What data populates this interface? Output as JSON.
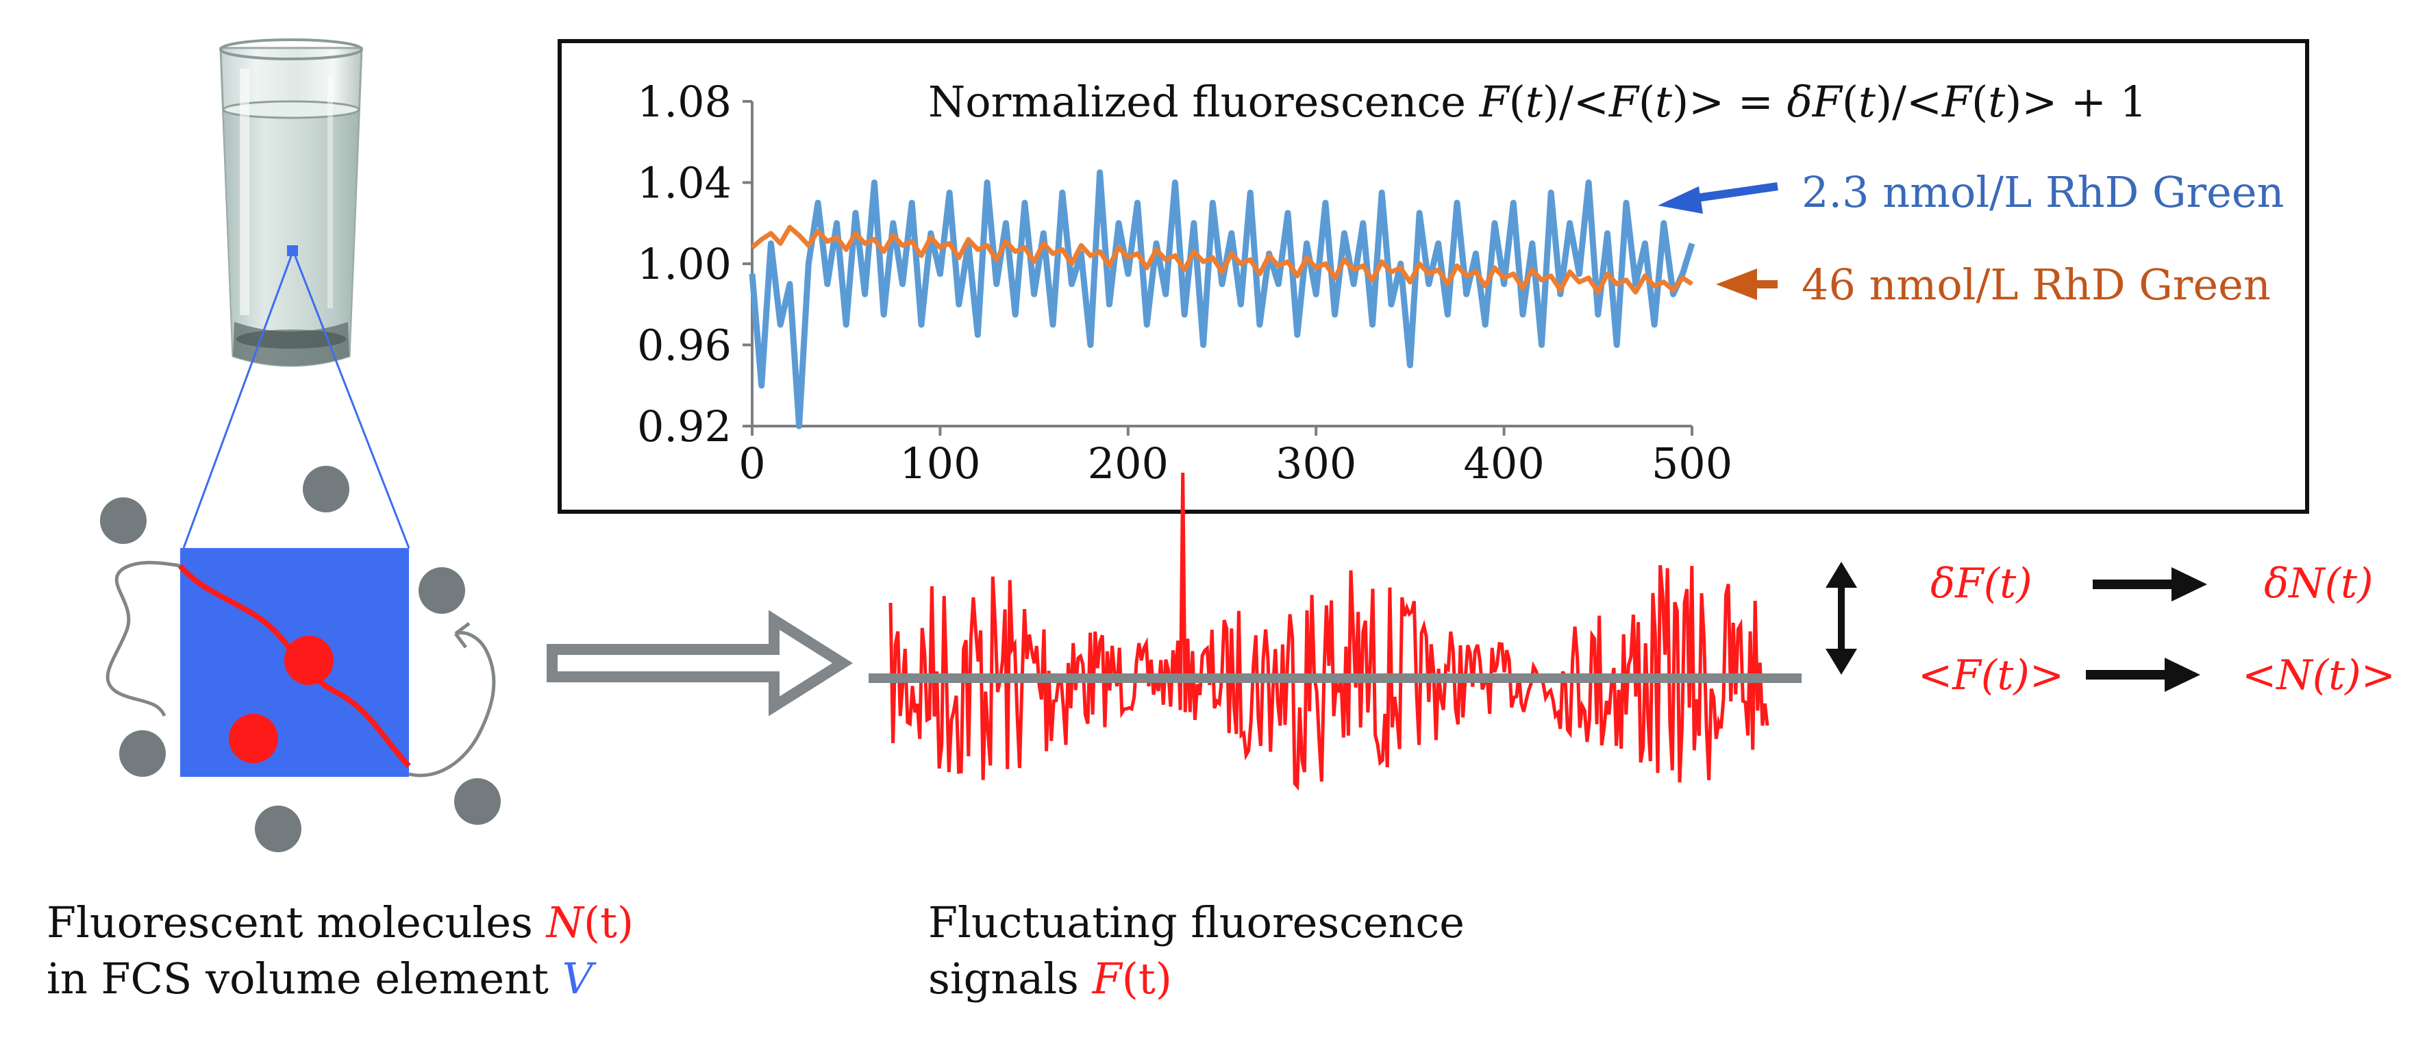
{
  "chart_data": {
    "type": "line",
    "title": "Normalized fluorescence",
    "title_formula": [
      "F(t)/<F(t)> = δF(t)/<F(t)> + 1"
    ],
    "xlabel": "",
    "ylabel": "",
    "xlim": [
      0,
      500
    ],
    "ylim": [
      0.92,
      1.08
    ],
    "x_ticks": [
      0,
      100,
      200,
      300,
      400,
      500
    ],
    "y_ticks": [
      0.92,
      0.96,
      1.0,
      1.04,
      1.08
    ],
    "x_tick_labels": [
      "0",
      "100",
      "200",
      "300",
      "400",
      "500"
    ],
    "y_tick_labels": [
      "0.92",
      "0.96",
      "1.00",
      "1.04",
      "1.08"
    ],
    "series": [
      {
        "name": "2.3 nmol/L RhD Green",
        "color": "#5b9bd5",
        "x": [
          0,
          5,
          10,
          15,
          20,
          25,
          30,
          35,
          40,
          45,
          50,
          55,
          60,
          65,
          70,
          75,
          80,
          85,
          90,
          95,
          100,
          105,
          110,
          115,
          120,
          125,
          130,
          135,
          140,
          145,
          150,
          155,
          160,
          165,
          170,
          175,
          180,
          185,
          190,
          195,
          200,
          205,
          210,
          215,
          220,
          225,
          230,
          235,
          240,
          245,
          250,
          255,
          260,
          265,
          270,
          275,
          280,
          285,
          290,
          295,
          300,
          305,
          310,
          315,
          320,
          325,
          330,
          335,
          340,
          345,
          350,
          355,
          360,
          365,
          370,
          375,
          380,
          385,
          390,
          395,
          400,
          405,
          410,
          415,
          420,
          425,
          430,
          435,
          440,
          445,
          450,
          455,
          460,
          465,
          470,
          475,
          480,
          485,
          490,
          495,
          500
        ],
        "values": [
          0.995,
          0.94,
          1.01,
          0.97,
          0.99,
          0.92,
          1.0,
          1.03,
          0.99,
          1.02,
          0.97,
          1.025,
          0.985,
          1.04,
          0.975,
          1.02,
          0.99,
          1.03,
          0.97,
          1.015,
          0.995,
          1.035,
          0.98,
          1.01,
          0.965,
          1.04,
          0.99,
          1.02,
          0.975,
          1.03,
          0.985,
          1.015,
          0.97,
          1.035,
          0.99,
          1.005,
          0.96,
          1.045,
          0.98,
          1.02,
          0.995,
          1.03,
          0.97,
          1.01,
          0.985,
          1.04,
          0.975,
          1.02,
          0.96,
          1.03,
          0.99,
          1.015,
          0.98,
          1.035,
          0.97,
          1.005,
          0.99,
          1.025,
          0.965,
          1.01,
          0.985,
          1.03,
          0.975,
          1.015,
          0.99,
          1.02,
          0.97,
          1.035,
          0.98,
          1.0,
          0.95,
          1.025,
          0.99,
          1.01,
          0.975,
          1.03,
          0.985,
          1.005,
          0.97,
          1.02,
          0.99,
          1.03,
          0.975,
          1.01,
          0.96,
          1.035,
          0.985,
          1.02,
          0.995,
          1.04,
          0.975,
          1.015,
          0.96,
          1.03,
          0.99,
          1.01,
          0.97,
          1.02,
          0.985,
          0.995,
          1.01
        ]
      },
      {
        "name": "46 nmol/L RhD Green",
        "color": "#ed7d31",
        "x": [
          0,
          5,
          10,
          15,
          20,
          25,
          30,
          35,
          40,
          45,
          50,
          55,
          60,
          65,
          70,
          75,
          80,
          85,
          90,
          95,
          100,
          105,
          110,
          115,
          120,
          125,
          130,
          135,
          140,
          145,
          150,
          155,
          160,
          165,
          170,
          175,
          180,
          185,
          190,
          195,
          200,
          205,
          210,
          215,
          220,
          225,
          230,
          235,
          240,
          245,
          250,
          255,
          260,
          265,
          270,
          275,
          280,
          285,
          290,
          295,
          300,
          305,
          310,
          315,
          320,
          325,
          330,
          335,
          340,
          345,
          350,
          355,
          360,
          365,
          370,
          375,
          380,
          385,
          390,
          395,
          400,
          405,
          410,
          415,
          420,
          425,
          430,
          435,
          440,
          445,
          450,
          455,
          460,
          465,
          470,
          475,
          480,
          485,
          490,
          495,
          500
        ],
        "values": [
          1.008,
          1.012,
          1.015,
          1.01,
          1.018,
          1.014,
          1.009,
          1.016,
          1.011,
          1.013,
          1.007,
          1.015,
          1.01,
          1.012,
          1.006,
          1.014,
          1.009,
          1.011,
          1.004,
          1.013,
          1.008,
          1.01,
          1.003,
          1.012,
          1.007,
          1.009,
          1.002,
          1.011,
          1.006,
          1.008,
          1.001,
          1.01,
          1.005,
          1.007,
          1.0,
          1.009,
          1.004,
          1.006,
          0.999,
          1.008,
          1.003,
          1.005,
          0.998,
          1.007,
          1.002,
          1.004,
          0.997,
          1.006,
          1.001,
          1.003,
          0.996,
          1.005,
          1.0,
          1.002,
          0.995,
          1.004,
          0.999,
          1.001,
          0.994,
          1.003,
          0.998,
          1.0,
          0.993,
          1.002,
          0.997,
          0.999,
          0.992,
          1.001,
          0.996,
          0.998,
          0.991,
          1.0,
          0.995,
          0.997,
          0.99,
          0.999,
          0.994,
          0.996,
          0.989,
          0.998,
          0.993,
          0.995,
          0.988,
          0.997,
          0.992,
          0.994,
          0.987,
          0.996,
          0.991,
          0.993,
          0.986,
          0.995,
          0.99,
          0.992,
          0.986,
          0.994,
          0.989,
          0.991,
          0.987,
          0.993,
          0.99
        ]
      }
    ]
  },
  "labels": {
    "left_caption_line1_prefix": "Fluorescent molecules ",
    "left_caption_line1_var": "N",
    "left_caption_line1_suffix": "(t)",
    "left_caption_line2_prefix": "in FCS volume element ",
    "left_caption_line2_var": "V",
    "mid_caption_line1": "Fluctuating  fluorescence",
    "mid_caption_line2_prefix": "signals ",
    "mid_caption_line2_var": "F",
    "mid_caption_line2_suffix": "(t)",
    "rel_dF": "δF(t)",
    "rel_dN": "δN(t)",
    "rel_F": "<F(t)>",
    "rel_N": "<N(t)>"
  },
  "colors": {
    "blue": "#3f6df0",
    "red": "#ff1a1a",
    "grey": "#808689",
    "arrow_blue": "#2c5fd0",
    "arrow_orange": "#c85a1a",
    "label_blue": "#3a6ab8",
    "label_orange": "#c0561c"
  }
}
